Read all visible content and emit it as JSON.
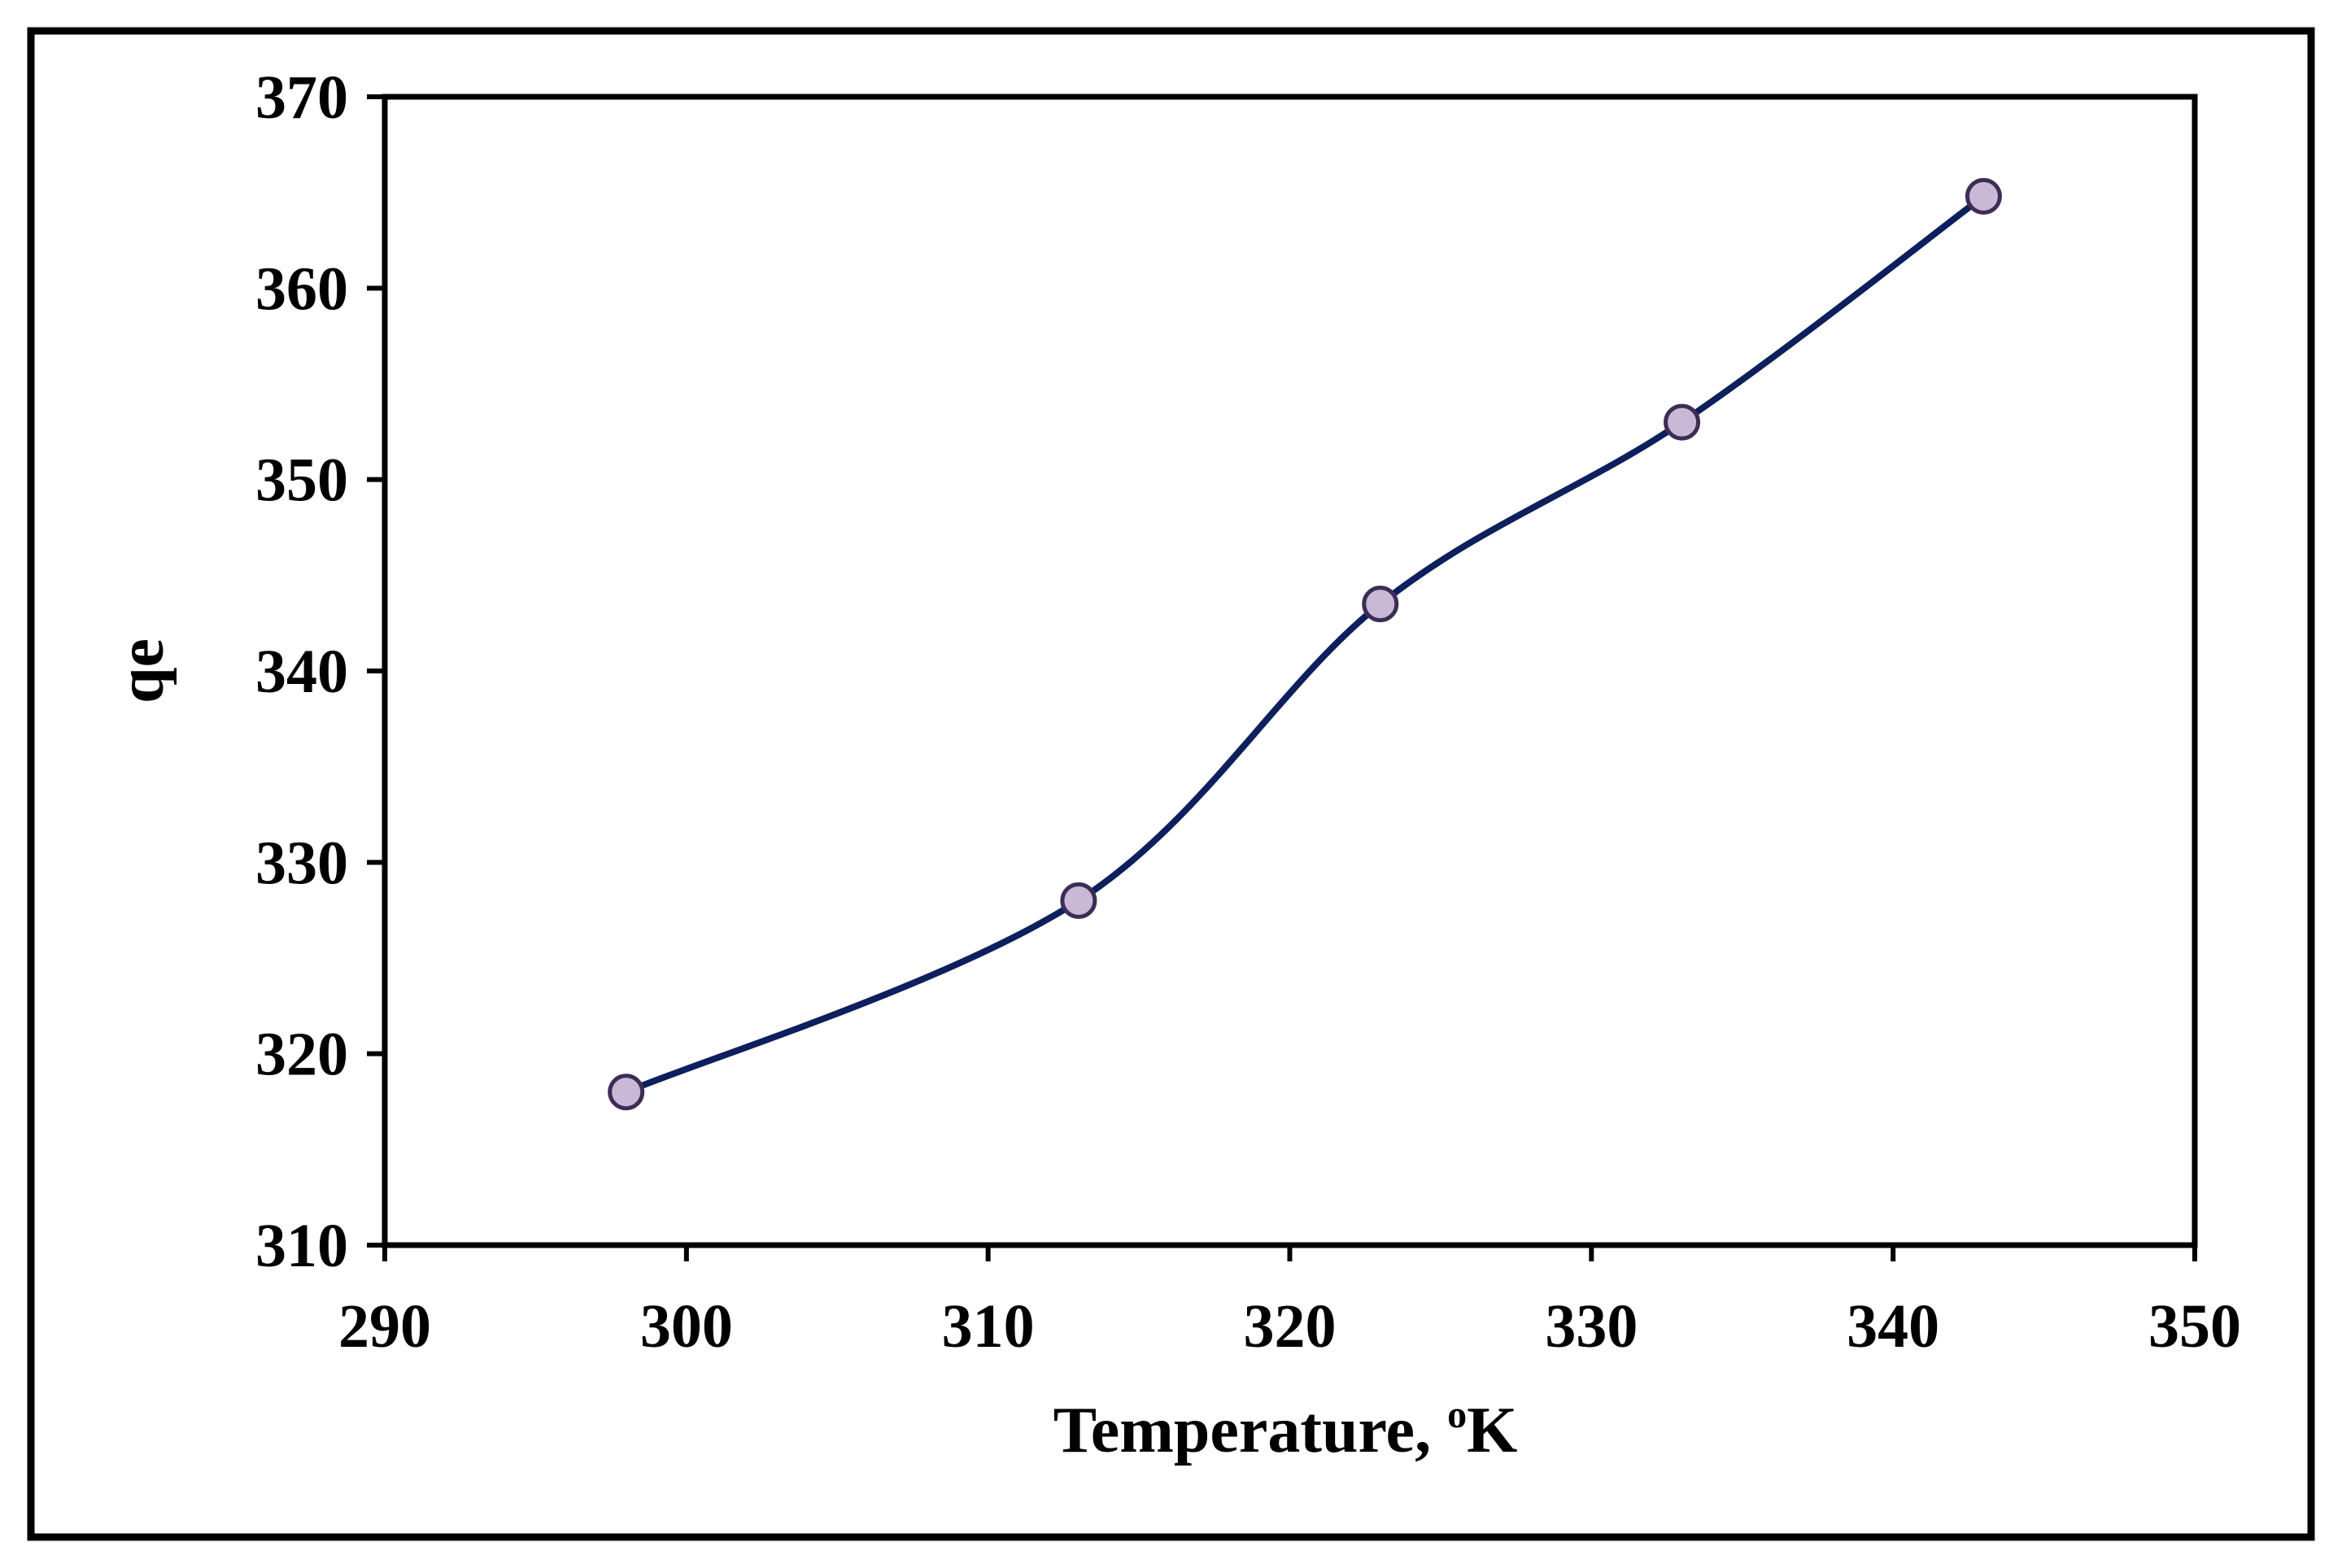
{
  "chart_data": {
    "type": "line",
    "title": "",
    "xlabel": "Temperature, ",
    "xlabel_superscript": "o",
    "xlabel_unit": "K",
    "ylabel": "qe",
    "xlim": [
      290,
      350
    ],
    "ylim": [
      310,
      370
    ],
    "x_ticks": [
      290,
      300,
      310,
      320,
      330,
      340,
      350
    ],
    "y_ticks": [
      310,
      320,
      330,
      340,
      350,
      360,
      370
    ],
    "x_tick_labels": [
      "290",
      "300",
      "310",
      "320",
      "330",
      "340",
      "350"
    ],
    "y_tick_labels": [
      "310",
      "320",
      "330",
      "340",
      "350",
      "360",
      "370"
    ],
    "grid": false,
    "smooth": true,
    "legend": "none",
    "series": [
      {
        "x": [
          298,
          313,
          323,
          333,
          343
        ],
        "y": [
          318.0,
          328.0,
          343.5,
          353.0,
          364.8
        ],
        "line_color": "#0d1f5c",
        "marker": "circle",
        "marker_fill": "#c9b8d6",
        "marker_stroke": "#3d2d55"
      }
    ]
  }
}
